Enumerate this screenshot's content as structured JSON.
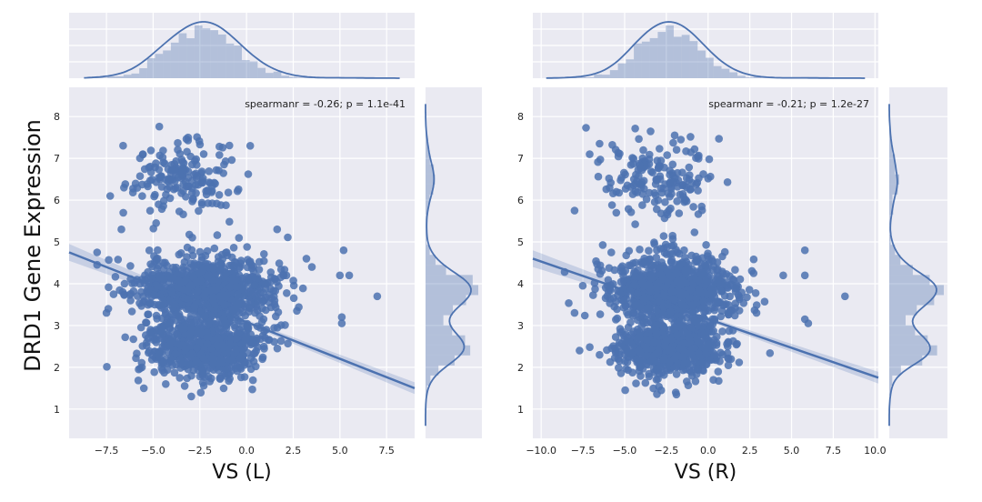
{
  "figure": {
    "ylabel": "DRD1 Gene Expression",
    "colors": {
      "panel_bg": "#EAEAF2",
      "grid": "#FFFFFF",
      "point": "#4C72B0",
      "band": "#4C72B0"
    }
  },
  "chart_data": [
    {
      "type": "scatter",
      "title": "",
      "xlabel": "VS (L)",
      "ylabel": "DRD1 Gene Expression",
      "xlim": [
        -9.5,
        9.0
      ],
      "ylim": [
        0.3,
        8.7
      ],
      "xticks": [
        -7.5,
        -5.0,
        -2.5,
        0.0,
        2.5,
        5.0,
        7.5
      ],
      "xtick_labels": [
        "−7.5",
        "−5.0",
        "−2.5",
        "0.0",
        "2.5",
        "5.0",
        "7.5"
      ],
      "yticks": [
        1,
        2,
        3,
        4,
        5,
        6,
        7,
        8
      ],
      "ytick_labels": [
        "1",
        "2",
        "3",
        "4",
        "5",
        "6",
        "7",
        "8"
      ],
      "annotation": "spearmanr = -0.26; p = 1.1e-41",
      "regression": {
        "x": [
          -9.5,
          9.0
        ],
        "y": [
          4.75,
          1.5
        ],
        "band_halfwidth": [
          0.2,
          0.05,
          0.14
        ]
      },
      "clusters": [
        {
          "x_mean": -2.3,
          "x_sd": 1.9,
          "y_mean": 3.85,
          "y_sd": 0.42,
          "n": 900
        },
        {
          "x_mean": -2.2,
          "x_sd": 1.6,
          "y_mean": 2.45,
          "y_sd": 0.35,
          "n": 650
        },
        {
          "x_mean": -3.6,
          "x_sd": 1.3,
          "y_mean": 6.55,
          "y_sd": 0.45,
          "n": 170
        }
      ],
      "outliers": [
        [
          5.2,
          4.8
        ],
        [
          5.0,
          4.2
        ],
        [
          5.5,
          4.2
        ],
        [
          7.0,
          3.7
        ],
        [
          5.1,
          3.2
        ],
        [
          5.1,
          3.05
        ],
        [
          -7.4,
          3.4
        ],
        [
          -7.5,
          3.3
        ],
        [
          3.5,
          4.4
        ],
        [
          -7.3,
          6.1
        ],
        [
          -8.0,
          4.75
        ],
        [
          -6.7,
          5.3
        ],
        [
          -6.6,
          5.7
        ],
        [
          0.2,
          7.3
        ],
        [
          -5.5,
          1.5
        ]
      ],
      "top_marginal_peak_x": -2.0,
      "right_marginal_peaks_y": [
        3.9,
        2.4,
        6.8
      ],
      "right_marginal_yrange": [
        0.6,
        8.3
      ]
    },
    {
      "type": "scatter",
      "title": "",
      "xlabel": "VS (R)",
      "ylabel": "",
      "xlim": [
        -10.5,
        10.2
      ],
      "ylim": [
        0.3,
        8.7
      ],
      "xticks": [
        -10.0,
        -7.5,
        -5.0,
        -2.5,
        0.0,
        2.5,
        5.0,
        7.5,
        10.0
      ],
      "xtick_labels": [
        "−10.0",
        "−7.5",
        "−5.0",
        "−2.5",
        "0.0",
        "2.5",
        "5.0",
        "7.5",
        "10.0"
      ],
      "yticks": [
        1,
        2,
        3,
        4,
        5,
        6,
        7,
        8
      ],
      "ytick_labels": [
        "1",
        "2",
        "3",
        "4",
        "5",
        "6",
        "7",
        "8"
      ],
      "annotation": "spearmanr = -0.21; p = 1.2e-27",
      "regression": {
        "x": [
          -10.5,
          10.2
        ],
        "y": [
          4.6,
          1.75
        ],
        "band_halfwidth": [
          0.2,
          0.05,
          0.14
        ]
      },
      "clusters": [
        {
          "x_mean": -2.2,
          "x_sd": 1.9,
          "y_mean": 3.85,
          "y_sd": 0.42,
          "n": 900
        },
        {
          "x_mean": -2.2,
          "x_sd": 1.6,
          "y_mean": 2.45,
          "y_sd": 0.35,
          "n": 650
        },
        {
          "x_mean": -3.0,
          "x_sd": 1.6,
          "y_mean": 6.5,
          "y_sd": 0.5,
          "n": 170
        }
      ],
      "outliers": [
        [
          5.8,
          4.8
        ],
        [
          4.5,
          4.2
        ],
        [
          5.8,
          4.2
        ],
        [
          8.2,
          3.7
        ],
        [
          5.8,
          3.15
        ],
        [
          6.0,
          3.05
        ],
        [
          -8.0,
          3.3
        ],
        [
          -7.7,
          2.4
        ],
        [
          2.9,
          3.3
        ],
        [
          -8.0,
          5.75
        ],
        [
          -5.5,
          5.7
        ],
        [
          -5.5,
          6.2
        ],
        [
          -6.5,
          7.35
        ],
        [
          -2.0,
          7.55
        ],
        [
          -1.9,
          1.35
        ]
      ],
      "top_marginal_peak_x": -2.0,
      "right_marginal_peaks_y": [
        3.9,
        2.4,
        6.8
      ],
      "right_marginal_yrange": [
        0.6,
        8.3
      ]
    }
  ]
}
